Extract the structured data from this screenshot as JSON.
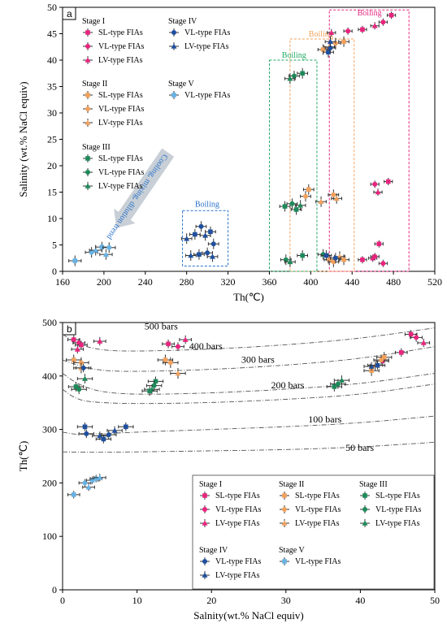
{
  "colors": {
    "stage1": "#e8247e",
    "stage2": "#f2a15c",
    "stage3": "#1d8a5a",
    "stage4": "#1f4f9e",
    "stage5": "#66b3e6",
    "boiling_pink": "#e8247e",
    "boiling_orange": "#f2a15c",
    "boiling_green": "#22aa66",
    "boiling_blue": "#2a72c9",
    "trend_arrow": "#c8cfd6"
  },
  "chart_data": [
    {
      "type": "scatter",
      "panel": "a",
      "xlabel": "Th(℃)",
      "ylabel": "Salinity (wt.% NaCl equiv)",
      "xlim": [
        160,
        520
      ],
      "ylim": [
        0,
        50
      ],
      "xticks": [
        160,
        200,
        240,
        280,
        320,
        360,
        400,
        440,
        480,
        520
      ],
      "yticks": [
        0,
        5,
        10,
        15,
        20,
        25,
        30,
        35,
        40,
        45,
        50
      ],
      "grid": false,
      "annotations": {
        "boiling": "Boiling",
        "trend": "Cooling, mixing, dilution trend"
      },
      "boiling_regions": [
        {
          "color": "boiling_pink",
          "x": [
            418,
            495
          ],
          "y": [
            0,
            49.5
          ],
          "label_at": [
            445,
            48.5
          ]
        },
        {
          "color": "boiling_orange",
          "x": [
            380,
            442
          ],
          "y": [
            0,
            44
          ],
          "label_at": [
            398,
            44.5
          ]
        },
        {
          "color": "boiling_green",
          "x": [
            360,
            406
          ],
          "y": [
            0,
            40
          ],
          "label_at": [
            372,
            40.5
          ]
        },
        {
          "color": "boiling_blue",
          "x": [
            276,
            320
          ],
          "y": [
            1,
            11.5
          ],
          "label_at": [
            288,
            12.2
          ]
        }
      ],
      "legend": [
        {
          "heading": "Stage I",
          "items": [
            "SL-type FIAs",
            "VL-type FIAs",
            "LV-type FIAs"
          ]
        },
        {
          "heading": "Stage II",
          "items": [
            "SL-type FIAs",
            "VL-type FIAs",
            "LV-type FIAs"
          ]
        },
        {
          "heading": "Stage III",
          "items": [
            "SL-type FIAs",
            "VL-type FIAs",
            "LV-type FIAs"
          ]
        },
        {
          "heading": "Stage IV",
          "items": [
            "VL-type FIAs",
            "LV-type FIAs"
          ]
        },
        {
          "heading": "Stage V",
          "items": [
            "VL-type FIAs"
          ]
        }
      ],
      "series": [
        {
          "stage": "stage1",
          "points": [
            [
              478,
              48.5
            ],
            [
              470,
              47.2
            ],
            [
              462,
              46.5
            ],
            [
              450,
              45.8
            ],
            [
              436,
              45.5
            ],
            [
              420,
              45.2
            ],
            [
              475,
              17
            ],
            [
              462,
              16.5
            ],
            [
              465,
              15
            ],
            [
              466,
              5.2
            ],
            [
              470,
              1.5
            ],
            [
              460,
              2.5
            ],
            [
              450,
              2.2
            ],
            [
              462,
              2.8
            ]
          ],
          "xerr": 4,
          "yerr": 0.7
        },
        {
          "stage": "stage2",
          "points": [
            [
              432,
              43.5
            ],
            [
              424,
              43.2
            ],
            [
              418,
              42.5
            ],
            [
              412,
              42
            ],
            [
              422,
              14.5
            ],
            [
              425,
              13.8
            ],
            [
              398,
              15.5
            ],
            [
              395,
              14.2
            ],
            [
              410,
              13.2
            ],
            [
              418,
              2.2
            ],
            [
              422,
              1.8
            ],
            [
              428,
              2.8
            ],
            [
              432,
              2.2
            ]
          ],
          "xerr": 5,
          "yerr": 1.0
        },
        {
          "stage": "stage3",
          "points": [
            [
              392,
              37.5
            ],
            [
              384,
              37
            ],
            [
              380,
              36.5
            ],
            [
              375,
              12.3
            ],
            [
              382,
              12.8
            ],
            [
              390,
              12.5
            ],
            [
              386,
              11.7
            ],
            [
              376,
              2.2
            ],
            [
              380,
              1.8
            ],
            [
              392,
              3
            ],
            [
              412,
              3.2
            ]
          ],
          "xerr": 5,
          "yerr": 1.0
        },
        {
          "stage": "stage4",
          "points": [
            [
              417,
              41.5
            ],
            [
              419,
              42.3
            ],
            [
              419,
              43.5
            ],
            [
              415,
              3
            ],
            [
              424,
              2.5
            ],
            [
              280,
              6.2
            ],
            [
              288,
              7
            ],
            [
              294,
              8.5
            ],
            [
              298,
              6.8
            ],
            [
              303,
              7.5
            ],
            [
              306,
              5.2
            ],
            [
              284,
              3
            ],
            [
              292,
              3.2
            ],
            [
              300,
              3.5
            ],
            [
              305,
              2.8
            ]
          ],
          "xerr": 5,
          "yerr": 1.0
        },
        {
          "stage": "stage5",
          "points": [
            [
              172,
              2
            ],
            [
              188,
              3.6
            ],
            [
              192,
              4
            ],
            [
              198,
              4.6
            ],
            [
              205,
              4.5
            ],
            [
              202,
              3.2
            ]
          ],
          "xerr": 6,
          "yerr": 1.0
        }
      ]
    },
    {
      "type": "scatter",
      "panel": "b",
      "xlabel": "Salnity(wt.% NaCl equiv)",
      "ylabel": "Th(℃)",
      "xlim": [
        0,
        50
      ],
      "ylim": [
        0,
        500
      ],
      "xticks": [
        0,
        10,
        20,
        30,
        40,
        50
      ],
      "yticks": [
        0,
        100,
        200,
        300,
        400,
        500
      ],
      "grid": false,
      "isobars": [
        {
          "label": "500 bars",
          "label_at": [
            11,
            487
          ],
          "points": [
            [
              0,
              478
            ],
            [
              2,
              460
            ],
            [
              5,
              448
            ],
            [
              10,
              446
            ],
            [
              20,
              450
            ],
            [
              30,
              458
            ],
            [
              40,
              470
            ],
            [
              50,
              490
            ]
          ]
        },
        {
          "label": "400 bars",
          "label_at": [
            17,
            450
          ],
          "points": [
            [
              0,
              430
            ],
            [
              2,
              420
            ],
            [
              5,
              410
            ],
            [
              10,
              408
            ],
            [
              20,
              412
            ],
            [
              30,
              420
            ],
            [
              40,
              432
            ],
            [
              50,
              455
            ]
          ]
        },
        {
          "label": "300 bars",
          "label_at": [
            24,
            425
          ],
          "points": [
            [
              0,
              405
            ],
            [
              2,
              385
            ],
            [
              5,
              370
            ],
            [
              10,
              365
            ],
            [
              20,
              368
            ],
            [
              30,
              375
            ],
            [
              40,
              385
            ],
            [
              50,
              405
            ]
          ]
        },
        {
          "label": "200 bars",
          "label_at": [
            28,
            377
          ],
          "points": [
            [
              0,
              375
            ],
            [
              2,
              355
            ],
            [
              5,
              350
            ],
            [
              10,
              348
            ],
            [
              20,
              350
            ],
            [
              30,
              356
            ],
            [
              40,
              365
            ],
            [
              50,
              385
            ]
          ]
        },
        {
          "label": "100 bars",
          "label_at": [
            33,
            313
          ],
          "points": [
            [
              0,
              295
            ],
            [
              2,
              290
            ],
            [
              5,
              292
            ],
            [
              10,
              295
            ],
            [
              20,
              300
            ],
            [
              30,
              305
            ],
            [
              40,
              312
            ],
            [
              50,
              325
            ]
          ]
        },
        {
          "label": "50 bars",
          "label_at": [
            38,
            260
          ],
          "points": [
            [
              0,
              258
            ],
            [
              5,
              257
            ],
            [
              10,
              258
            ],
            [
              20,
              260
            ],
            [
              30,
              262
            ],
            [
              40,
              267
            ],
            [
              50,
              276
            ]
          ]
        }
      ],
      "legend": [
        {
          "heading": "Stage I",
          "items": [
            "SL-type FIAs",
            "VL-type FIAs",
            "LV-type FIAs"
          ]
        },
        {
          "heading": "Stage II",
          "items": [
            "SL-type FIAs",
            "VL-type FIAs",
            "LV-type FIAs"
          ]
        },
        {
          "heading": "Stage III",
          "items": [
            "SL-type FIAs",
            "VL-type FIAs",
            "LV-type FIAs"
          ]
        },
        {
          "heading": "Stage IV",
          "items": [
            "VL-type FIAs",
            "LV-type FIAs"
          ]
        },
        {
          "heading": "Stage V",
          "items": [
            "VL-type FIAs"
          ]
        }
      ],
      "series": [
        {
          "stage": "stage1",
          "points": [
            [
              1.5,
              468
            ],
            [
              2.2,
              462
            ],
            [
              5,
              465
            ],
            [
              14.2,
              460
            ],
            [
              15.5,
              455
            ],
            [
              16.5,
              468
            ],
            [
              46.8,
              478
            ],
            [
              47.5,
              472
            ],
            [
              48.5,
              462
            ],
            [
              45.5,
              444
            ],
            [
              43,
              428
            ],
            [
              2,
              450
            ],
            [
              2.5,
              458
            ]
          ],
          "xerr": 0.8,
          "yerr": 8
        },
        {
          "stage": "stage2",
          "points": [
            [
              1.5,
              430
            ],
            [
              2.5,
              425
            ],
            [
              2.5,
              415
            ],
            [
              13.8,
              430
            ],
            [
              14.5,
              425
            ],
            [
              15.5,
              405
            ],
            [
              43.2,
              435
            ],
            [
              42.8,
              430
            ],
            [
              42,
              420
            ],
            [
              41.5,
              410
            ]
          ],
          "xerr": 1.0,
          "yerr": 10
        },
        {
          "stage": "stage3",
          "points": [
            [
              1.8,
              380
            ],
            [
              2.2,
              375
            ],
            [
              3,
              395
            ],
            [
              12.5,
              390
            ],
            [
              12.3,
              382
            ],
            [
              12,
              375
            ],
            [
              36.5,
              380
            ],
            [
              37,
              385
            ],
            [
              37.5,
              392
            ],
            [
              11.7,
              372
            ]
          ],
          "xerr": 1.0,
          "yerr": 9
        },
        {
          "stage": "stage4",
          "points": [
            [
              3,
              305
            ],
            [
              3.2,
              292
            ],
            [
              5,
              288
            ],
            [
              5.5,
              282
            ],
            [
              6.2,
              290
            ],
            [
              7,
              298
            ],
            [
              8.5,
              305
            ],
            [
              2.8,
              415
            ],
            [
              41.5,
              418
            ],
            [
              42.3,
              420
            ]
          ],
          "xerr": 1.0,
          "yerr": 8
        },
        {
          "stage": "stage5",
          "points": [
            [
              1.5,
              178
            ],
            [
              3,
              200
            ],
            [
              3.5,
              192
            ],
            [
              4,
              205
            ],
            [
              4.5,
              208
            ],
            [
              5,
              210
            ]
          ],
          "xerr": 0.8,
          "yerr": 7
        }
      ]
    }
  ]
}
